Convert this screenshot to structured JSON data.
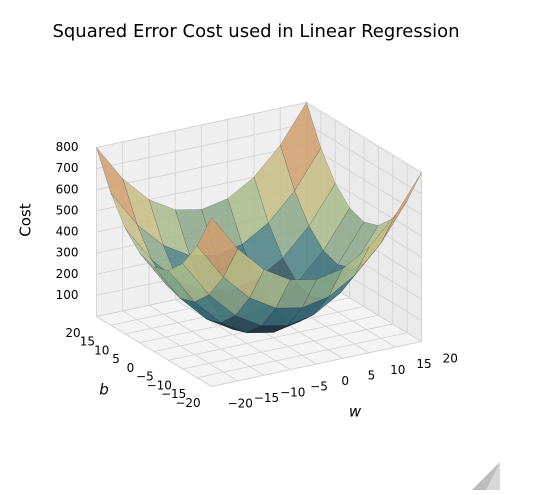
{
  "chart_data": {
    "type": "surface3d",
    "title": "Squared Error Cost used in Linear Regression",
    "xlabel": "w",
    "ylabel": "b",
    "zlabel": "Cost",
    "x": [
      -20,
      -15,
      -10,
      -5,
      0,
      5,
      10,
      15,
      20
    ],
    "y": [
      -20,
      -15,
      -10,
      -5,
      0,
      5,
      10,
      15,
      20
    ],
    "z": [
      [
        800,
        625,
        500,
        425,
        400,
        425,
        500,
        625,
        800
      ],
      [
        625,
        450,
        325,
        250,
        225,
        250,
        325,
        450,
        625
      ],
      [
        500,
        325,
        200,
        125,
        100,
        125,
        200,
        325,
        500
      ],
      [
        425,
        250,
        125,
        50,
        25,
        50,
        125,
        250,
        425
      ],
      [
        400,
        225,
        100,
        25,
        0,
        25,
        100,
        225,
        400
      ],
      [
        425,
        250,
        125,
        50,
        25,
        50,
        125,
        250,
        425
      ],
      [
        500,
        325,
        200,
        125,
        100,
        125,
        200,
        325,
        500
      ],
      [
        625,
        450,
        325,
        250,
        225,
        250,
        325,
        450,
        625
      ],
      [
        800,
        625,
        500,
        425,
        400,
        425,
        500,
        625,
        800
      ]
    ],
    "xlim": [
      -20,
      20
    ],
    "ylim": [
      -20,
      20
    ],
    "zlim": [
      0,
      800
    ],
    "xticks": [
      {
        "value": -20,
        "label": "−20"
      },
      {
        "value": -15,
        "label": "−15"
      },
      {
        "value": -10,
        "label": "−10"
      },
      {
        "value": -5,
        "label": "−5"
      },
      0,
      5,
      10,
      15,
      20
    ],
    "yticks": [
      {
        "value": -20,
        "label": "−20"
      },
      {
        "value": -15,
        "label": "−15"
      },
      {
        "value": -10,
        "label": "−10"
      },
      {
        "value": -5,
        "label": "−5"
      },
      0,
      5,
      10,
      15,
      20
    ],
    "zticks": [
      100,
      200,
      300,
      400,
      500,
      600,
      700,
      800
    ],
    "grid": true,
    "colormap": [
      "#0e0e1c",
      "#3a7680",
      "#b9c58c",
      "#d8b072",
      "#9c1f4c"
    ]
  }
}
